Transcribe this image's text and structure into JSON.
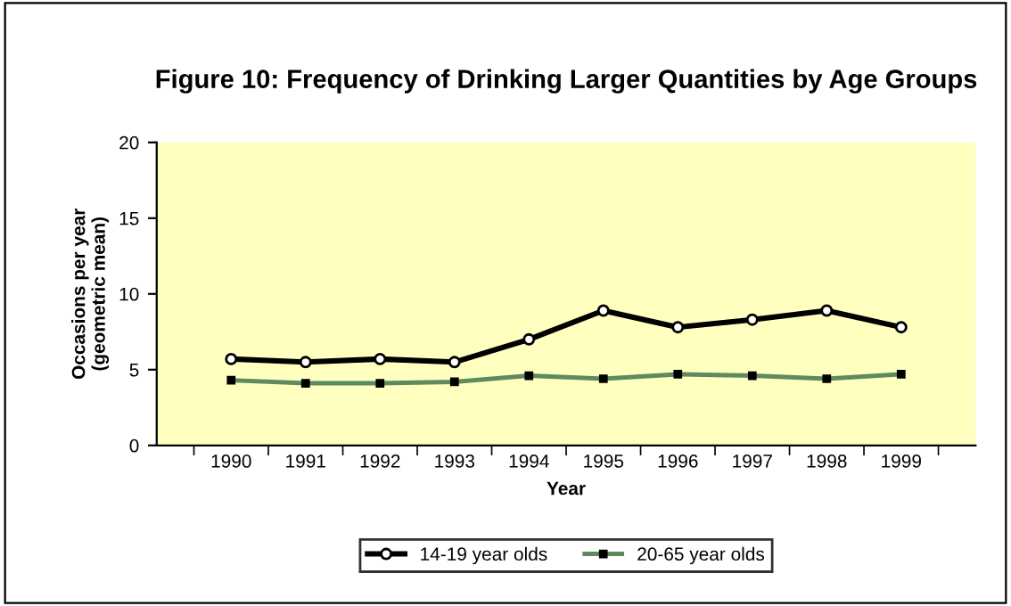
{
  "chart_data": {
    "type": "line",
    "title": "Figure 10: Frequency of Drinking Larger Quantities by Age Groups",
    "xlabel": "Year",
    "ylabel": "Occasions per year\n(geometric mean)",
    "categories": [
      "1990",
      "1991",
      "1992",
      "1993",
      "1994",
      "1995",
      "1996",
      "1997",
      "1998",
      "1999"
    ],
    "series": [
      {
        "name": "14-19 year olds",
        "color": "#000000",
        "marker": "circle",
        "values": [
          5.7,
          5.5,
          5.7,
          5.5,
          7.0,
          8.9,
          7.8,
          8.3,
          8.9,
          7.8
        ]
      },
      {
        "name": "20-65 year olds",
        "color": "#5f8a5f",
        "marker": "square",
        "values": [
          4.3,
          4.1,
          4.1,
          4.2,
          4.6,
          4.4,
          4.7,
          4.6,
          4.4,
          4.7
        ]
      }
    ],
    "ylim": [
      0,
      20
    ],
    "yticks": [
      0,
      5,
      10,
      15,
      20
    ],
    "grid": false,
    "legend": "bottom",
    "line_style": "solid"
  }
}
